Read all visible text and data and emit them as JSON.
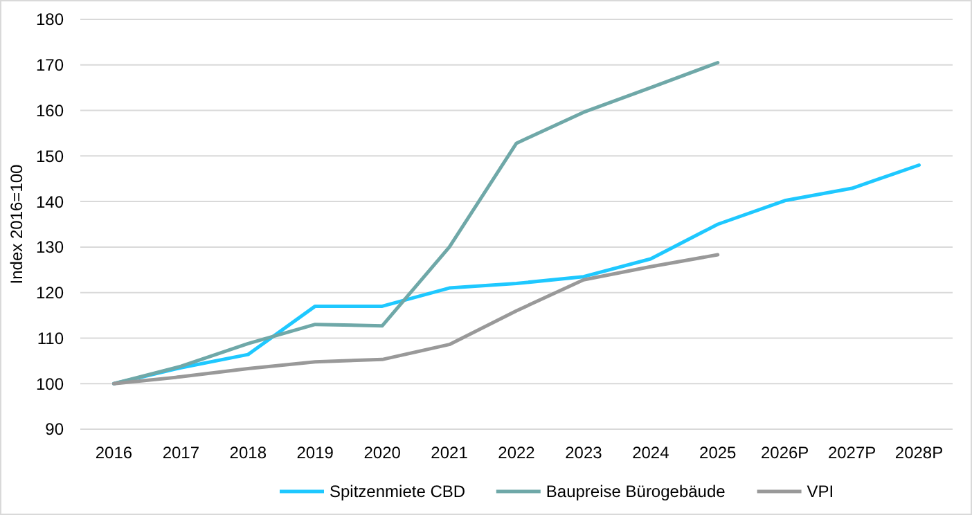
{
  "chart_data": {
    "type": "line",
    "ylabel": "Index 2016=100",
    "categories": [
      "2016",
      "2017",
      "2018",
      "2019",
      "2020",
      "2021",
      "2022",
      "2023",
      "2024",
      "2025",
      "2026P",
      "2027P",
      "2028P"
    ],
    "series": [
      {
        "name": "Spitzenmiete CBD",
        "color": "#1ec8ff",
        "values": [
          100,
          103.5,
          106.4,
          117,
          117,
          121,
          122,
          123.5,
          127.4,
          135,
          140.2,
          142.9,
          148
        ]
      },
      {
        "name": "Baupreise Bürogebäude",
        "color": "#6fa8a8",
        "values": [
          100,
          103.8,
          108.8,
          113,
          112.7,
          130,
          152.8,
          159.6,
          165,
          170.5,
          null,
          null,
          null
        ]
      },
      {
        "name": "VPI",
        "color": "#999999",
        "values": [
          100,
          101.5,
          103.3,
          104.8,
          105.3,
          108.6,
          116,
          122.8,
          125.7,
          128.3,
          null,
          null,
          null
        ]
      }
    ],
    "ylim": [
      90,
      180
    ],
    "yticks": [
      90,
      100,
      110,
      120,
      130,
      140,
      150,
      160,
      170,
      180
    ],
    "grid": "y",
    "legend": "bottom",
    "marker": "none",
    "line_style": "solid"
  }
}
